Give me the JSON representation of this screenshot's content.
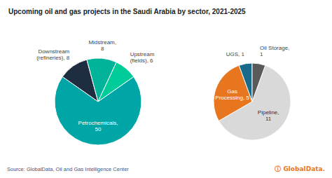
{
  "chart_data": [
    {
      "type": "pie",
      "title": "Upcoming oil and gas projects in the Saudi Arabia by sector, 2021-2025",
      "values": [
        50,
        8,
        8,
        6
      ],
      "value_labels": [
        "Petrochemicals,\n50",
        "Downstream\n(refineries), 8",
        "Midstream,\n8",
        "Upstream\n(fields), 6"
      ],
      "colors": [
        "#00a5a5",
        "#1e2d40",
        "#00b399",
        "#00cc99"
      ],
      "data_labels": true,
      "annotations": [
        {
          "text": "Source: GlobalData, Oil and Gas Intelligence Center"
        },
        {
          "text": "ⓘ GlobalData.",
          "color": "#e8761e"
        }
      ]
    },
    {
      "type": "pie",
      "values": [
        11,
        5,
        1,
        1
      ],
      "value_labels": [
        "Pipeline,\n11",
        "Gas\nProcessing, 5",
        "UGS, 1",
        "Oil Storage,\n1"
      ],
      "colors": [
        "#d9d9d9",
        "#e8761e",
        "#1a6b8a",
        "#5a5a5a"
      ],
      "data_labels": true
    }
  ]
}
